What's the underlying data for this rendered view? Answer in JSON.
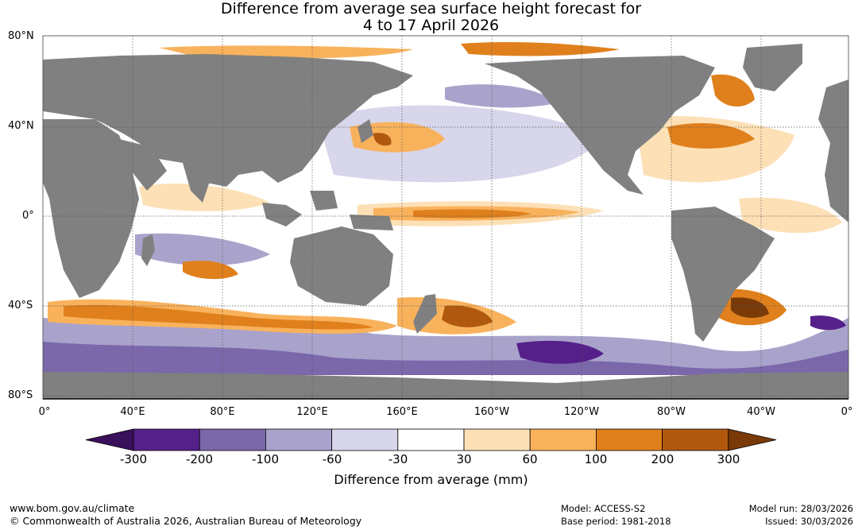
{
  "header": {
    "title_line1": "Difference from average sea surface height forecast for",
    "title_line2": "4 to 17 April 2026"
  },
  "map": {
    "land_color": "#808080",
    "ocean_base_color": "#ffffff",
    "lat_labels": [
      "80°N",
      "40°N",
      "0°",
      "40°S",
      "80°S"
    ],
    "lon_labels": [
      "0°",
      "40°E",
      "80°E",
      "120°E",
      "160°E",
      "160°W",
      "120°W",
      "80°W",
      "40°W",
      "0°"
    ]
  },
  "colorbar": {
    "title": "Difference from average (mm)",
    "tick_labels": [
      "-300",
      "-200",
      "-100",
      "-60",
      "-30",
      "30",
      "60",
      "100",
      "200",
      "300"
    ],
    "colors": [
      "#3a0f5c",
      "#56208a",
      "#7a68aa",
      "#a9a3cc",
      "#d7d6ea",
      "#ffffff",
      "#fde0b6",
      "#f9b25c",
      "#e0801c",
      "#b0590e",
      "#7a3a08"
    ]
  },
  "footer": {
    "website": "www.bom.gov.au/climate",
    "copyright": "© Commonwealth of Australia 2026, Australian Bureau of Meteorology",
    "model": "Model: ACCESS-S2",
    "base_period": "Base period: 1981-2018",
    "model_run": "Model run: 28/03/2026",
    "issued": "Issued: 30/03/2026"
  }
}
